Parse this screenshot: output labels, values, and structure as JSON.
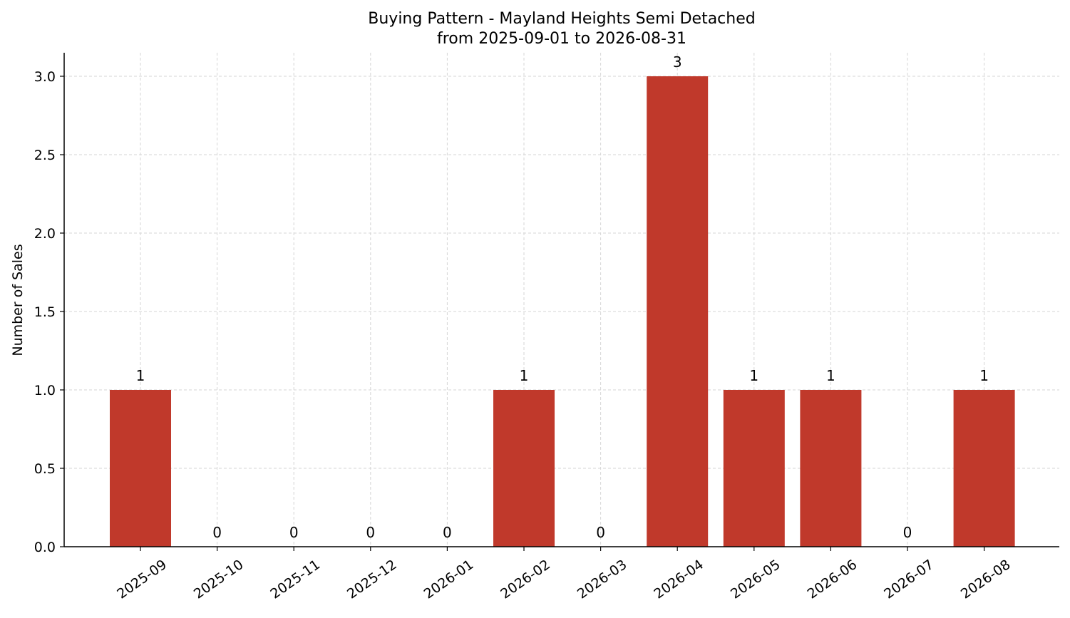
{
  "chart_data": {
    "type": "bar",
    "title": "Buying Pattern - Mayland Heights Semi Detached",
    "subtitle": "from 2025-09-01 to 2026-08-31",
    "xlabel": "",
    "ylabel": "Number of Sales",
    "categories": [
      "2025-09",
      "2025-10",
      "2025-11",
      "2025-12",
      "2026-01",
      "2026-02",
      "2026-03",
      "2026-04",
      "2026-05",
      "2026-06",
      "2026-07",
      "2026-08"
    ],
    "values": [
      1,
      0,
      0,
      0,
      0,
      1,
      0,
      3,
      1,
      1,
      0,
      1
    ],
    "data_labels": [
      "1",
      "0",
      "0",
      "0",
      "0",
      "1",
      "0",
      "3",
      "1",
      "1",
      "0",
      "1"
    ],
    "ylim": [
      0,
      3.15
    ],
    "yticks": [
      0.0,
      0.5,
      1.0,
      1.5,
      2.0,
      2.5,
      3.0
    ],
    "ytick_labels": [
      "0.0",
      "0.5",
      "1.0",
      "1.5",
      "2.0",
      "2.5",
      "3.0"
    ],
    "bar_color": "#c0392b",
    "grid": true,
    "legend": "none"
  }
}
